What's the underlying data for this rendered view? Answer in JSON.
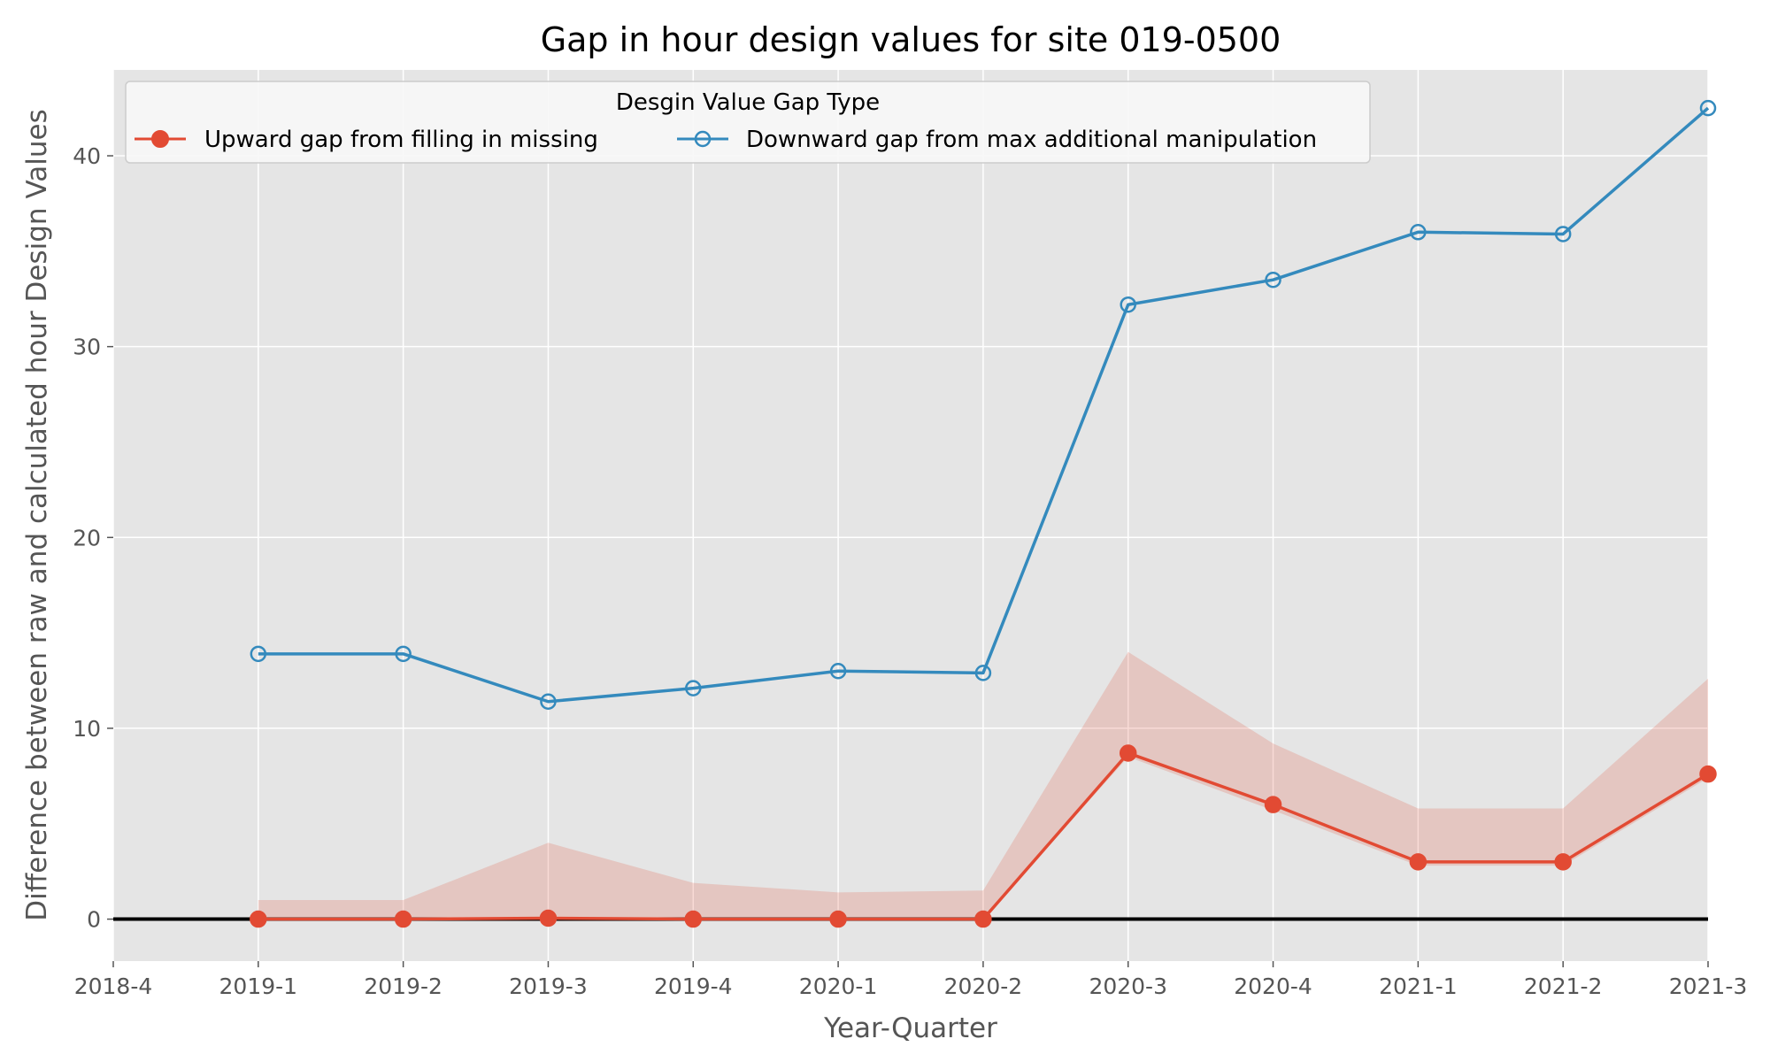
{
  "chart_data": {
    "type": "line",
    "title": "Gap in hour design values for site 019-0500",
    "xlabel": "Year-Quarter",
    "ylabel": "Difference between raw and calculated hour Design Values",
    "categories": [
      "2018-4",
      "2019-1",
      "2019-2",
      "2019-3",
      "2019-4",
      "2020-1",
      "2020-2",
      "2020-3",
      "2020-4",
      "2021-1",
      "2021-2",
      "2021-3"
    ],
    "ylim": [
      -2.2,
      44.5
    ],
    "yticks": [
      0,
      10,
      20,
      30,
      40
    ],
    "grid": true,
    "legend": {
      "title": "Desgin Value Gap Type",
      "placement": "top",
      "columns": 2
    },
    "series": [
      {
        "name": "Upward gap from filling in missing",
        "color": "#E24A33",
        "marker": "filled-circle",
        "x": [
          "2019-1",
          "2019-2",
          "2019-3",
          "2019-4",
          "2020-1",
          "2020-2",
          "2020-3",
          "2020-4",
          "2021-1",
          "2021-2",
          "2021-3"
        ],
        "values": [
          0,
          0,
          0.05,
          0,
          0,
          0,
          8.7,
          6.0,
          3.0,
          3.0,
          7.6
        ],
        "band_lower": [
          0,
          0,
          0,
          0,
          0,
          0,
          8.5,
          5.7,
          2.8,
          2.8,
          7.4
        ],
        "band_upper": [
          1.0,
          1.0,
          4.0,
          1.9,
          1.4,
          1.5,
          14.0,
          9.2,
          5.8,
          5.8,
          12.6
        ]
      },
      {
        "name": "Downward gap from max additional manipulation",
        "color": "#348ABD",
        "marker": "open-circle",
        "x": [
          "2019-1",
          "2019-2",
          "2019-3",
          "2019-4",
          "2020-1",
          "2020-2",
          "2020-3",
          "2020-4",
          "2021-1",
          "2021-2",
          "2021-3"
        ],
        "values": [
          13.9,
          13.9,
          11.4,
          12.1,
          13.0,
          12.9,
          32.2,
          33.5,
          36.0,
          35.9,
          42.5
        ]
      }
    ],
    "reference_line": {
      "y": 0,
      "color": "#000000"
    },
    "background": "#E5E5E5"
  }
}
